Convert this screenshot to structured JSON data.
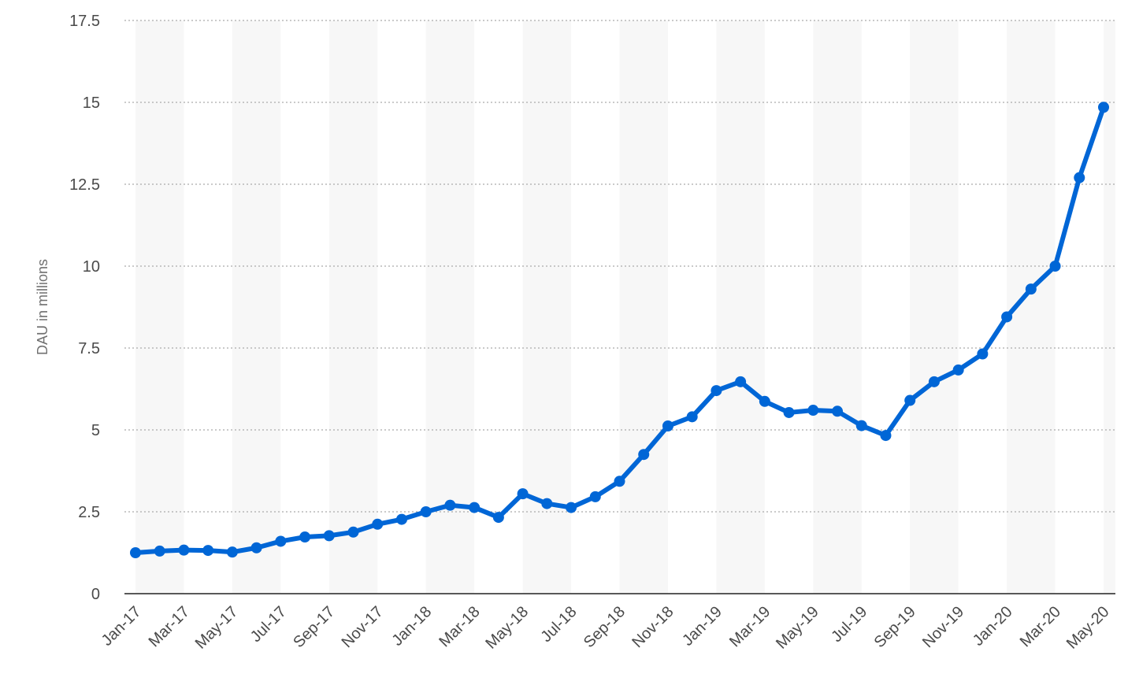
{
  "chart_data": {
    "type": "line",
    "title": "",
    "xlabel": "",
    "ylabel": "DAU in millions",
    "ylim": [
      0,
      17.5
    ],
    "yticks": [
      "0",
      "2.5",
      "5",
      "7.5",
      "10",
      "12.5",
      "15",
      "17.5"
    ],
    "grid": true,
    "legend": "none",
    "colors": {
      "line": "#0066d6",
      "band": "#f7f7f7",
      "grid": "#aaaaaa",
      "axis": "#222222"
    },
    "x_tick_labels": [
      "Jan-17",
      "Mar-17",
      "May-17",
      "Jul-17",
      "Sep-17",
      "Nov-17",
      "Jan-18",
      "Mar-18",
      "May-18",
      "Jul-18",
      "Sep-18",
      "Nov-18",
      "Jan-19",
      "Mar-19",
      "May-19",
      "Jul-19",
      "Sep-19",
      "Nov-19",
      "Jan-20",
      "Mar-20",
      "May-20"
    ],
    "categories": [
      "Jan-17",
      "Feb-17",
      "Mar-17",
      "Apr-17",
      "May-17",
      "Jun-17",
      "Jul-17",
      "Aug-17",
      "Sep-17",
      "Oct-17",
      "Nov-17",
      "Dec-17",
      "Jan-18",
      "Feb-18",
      "Mar-18",
      "Apr-18",
      "May-18",
      "Jun-18",
      "Jul-18",
      "Aug-18",
      "Sep-18",
      "Oct-18",
      "Nov-18",
      "Dec-18",
      "Jan-19",
      "Feb-19",
      "Mar-19",
      "Apr-19",
      "May-19",
      "Jun-19",
      "Jul-19",
      "Aug-19",
      "Sep-19",
      "Oct-19",
      "Nov-19",
      "Dec-19",
      "Jan-20",
      "Feb-20",
      "Mar-20",
      "Apr-20",
      "May-20"
    ],
    "series": [
      {
        "values": [
          1.25,
          1.3,
          1.33,
          1.32,
          1.27,
          1.4,
          1.6,
          1.73,
          1.77,
          1.88,
          2.12,
          2.27,
          2.5,
          2.7,
          2.63,
          2.33,
          3.05,
          2.75,
          2.63,
          2.96,
          3.43,
          4.25,
          5.12,
          5.4,
          6.2,
          6.47,
          5.87,
          5.53,
          5.6,
          5.57,
          5.13,
          4.83,
          5.9,
          6.47,
          6.83,
          7.32,
          8.45,
          9.3,
          10.0,
          12.7,
          14.85
        ]
      }
    ]
  }
}
